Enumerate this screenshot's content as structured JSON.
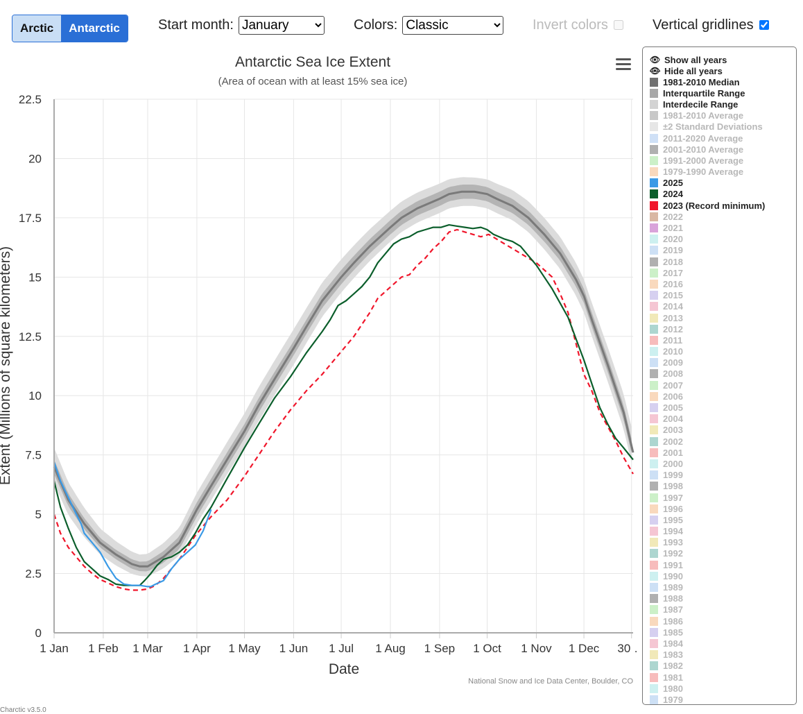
{
  "controls": {
    "arctic_label": "Arctic",
    "antarctic_label": "Antarctic",
    "start_month_label": "Start month:",
    "start_month_value": "January",
    "colors_label": "Colors:",
    "colors_value": "Classic",
    "invert_label": "Invert colors",
    "gridlines_label": "Vertical gridlines"
  },
  "credit": "National Snow and Ice Data Center, Boulder, CO",
  "version": "Charctic v3.5.0",
  "legend": {
    "show_all": "Show all years",
    "hide_all": "Hide all years",
    "items": [
      {
        "label": "1981-2010 Median",
        "color": "#707070",
        "active": true
      },
      {
        "label": "Interquartile Range",
        "color": "#a8a8a8",
        "active": true
      },
      {
        "label": "Interdecile Range",
        "color": "#d3d3d3",
        "active": true
      },
      {
        "label": "1981-2010 Average",
        "color": "#c8c8c8",
        "active": false
      },
      {
        "label": "±2 Standard Deviations",
        "color": "#e6e6e6",
        "active": false
      },
      {
        "label": "2011-2020 Average",
        "color": "#cfe0f6",
        "active": false
      },
      {
        "label": "2001-2010 Average",
        "color": "#b0b0b0",
        "active": false
      },
      {
        "label": "1991-2000 Average",
        "color": "#ccf0c8",
        "active": false
      },
      {
        "label": "1979-1990 Average",
        "color": "#f9d9bd",
        "active": false
      },
      {
        "label": "2025",
        "color": "#3a9ae6",
        "active": true
      },
      {
        "label": "2024",
        "color": "#0b5e2b",
        "active": true
      },
      {
        "label": "2023 (Record minimum)",
        "color": "#f0162b",
        "active": true
      },
      {
        "label": "2022",
        "color": "#d9b7a3",
        "active": false
      },
      {
        "label": "2021",
        "color": "#d9a3da",
        "active": false
      },
      {
        "label": "2020",
        "color": "#cdf0f0",
        "active": false
      },
      {
        "label": "2019",
        "color": "#cde0f5",
        "active": false
      },
      {
        "label": "2018",
        "color": "#b0b0b0",
        "active": false
      },
      {
        "label": "2017",
        "color": "#ccf0c8",
        "active": false
      },
      {
        "label": "2016",
        "color": "#f9d9bd",
        "active": false
      },
      {
        "label": "2015",
        "color": "#d6d0f0",
        "active": false
      },
      {
        "label": "2014",
        "color": "#f5c6d3",
        "active": false
      },
      {
        "label": "2013",
        "color": "#f1e9b8",
        "active": false
      },
      {
        "label": "2012",
        "color": "#add6d0",
        "active": false
      },
      {
        "label": "2011",
        "color": "#f7bcbc",
        "active": false
      },
      {
        "label": "2010",
        "color": "#cdf0f0",
        "active": false
      },
      {
        "label": "2009",
        "color": "#cde0f5",
        "active": false
      },
      {
        "label": "2008",
        "color": "#b0b0b0",
        "active": false
      },
      {
        "label": "2007",
        "color": "#ccf0c8",
        "active": false
      },
      {
        "label": "2006",
        "color": "#f9d9bd",
        "active": false
      },
      {
        "label": "2005",
        "color": "#d6d0f0",
        "active": false
      },
      {
        "label": "2004",
        "color": "#f5c6d3",
        "active": false
      },
      {
        "label": "2003",
        "color": "#f1e9b8",
        "active": false
      },
      {
        "label": "2002",
        "color": "#add6d0",
        "active": false
      },
      {
        "label": "2001",
        "color": "#f7bcbc",
        "active": false
      },
      {
        "label": "2000",
        "color": "#cdf0f0",
        "active": false
      },
      {
        "label": "1999",
        "color": "#cde0f5",
        "active": false
      },
      {
        "label": "1998",
        "color": "#b0b0b0",
        "active": false
      },
      {
        "label": "1997",
        "color": "#ccf0c8",
        "active": false
      },
      {
        "label": "1996",
        "color": "#f9d9bd",
        "active": false
      },
      {
        "label": "1995",
        "color": "#d6d0f0",
        "active": false
      },
      {
        "label": "1994",
        "color": "#f5c6d3",
        "active": false
      },
      {
        "label": "1993",
        "color": "#f1e9b8",
        "active": false
      },
      {
        "label": "1992",
        "color": "#add6d0",
        "active": false
      },
      {
        "label": "1991",
        "color": "#f7bcbc",
        "active": false
      },
      {
        "label": "1990",
        "color": "#cdf0f0",
        "active": false
      },
      {
        "label": "1989",
        "color": "#cde0f5",
        "active": false
      },
      {
        "label": "1988",
        "color": "#b0b0b0",
        "active": false
      },
      {
        "label": "1987",
        "color": "#ccf0c8",
        "active": false
      },
      {
        "label": "1986",
        "color": "#f9d9bd",
        "active": false
      },
      {
        "label": "1985",
        "color": "#d6d0f0",
        "active": false
      },
      {
        "label": "1984",
        "color": "#f5c6d3",
        "active": false
      },
      {
        "label": "1983",
        "color": "#f1e9b8",
        "active": false
      },
      {
        "label": "1982",
        "color": "#add6d0",
        "active": false
      },
      {
        "label": "1981",
        "color": "#f7bcbc",
        "active": false
      },
      {
        "label": "1980",
        "color": "#cdf0f0",
        "active": false
      },
      {
        "label": "1979",
        "color": "#cde0f5",
        "active": false
      }
    ]
  },
  "chart_data": {
    "type": "line",
    "title": "Antarctic Sea Ice Extent",
    "subtitle": "(Area of ocean with at least 15% sea ice)",
    "xlabel": "Date",
    "ylabel": "Extent (Millions of square kilometers)",
    "ylim": [
      0,
      22.5
    ],
    "xlim": [
      1,
      366
    ],
    "yticks": [
      0,
      2.5,
      5,
      7.5,
      10,
      12.5,
      15,
      17.5,
      20,
      22.5
    ],
    "xticks": [
      {
        "day": 1,
        "label": "1 Jan"
      },
      {
        "day": 32,
        "label": "1 Feb"
      },
      {
        "day": 60,
        "label": "1 Mar"
      },
      {
        "day": 91,
        "label": "1 Apr"
      },
      {
        "day": 121,
        "label": "1 May"
      },
      {
        "day": 152,
        "label": "1 Jun"
      },
      {
        "day": 182,
        "label": "1 Jul"
      },
      {
        "day": 213,
        "label": "1 Aug"
      },
      {
        "day": 244,
        "label": "1 Sep"
      },
      {
        "day": 274,
        "label": "1 Oct"
      },
      {
        "day": 305,
        "label": "1 Nov"
      },
      {
        "day": 335,
        "label": "1 Dec"
      },
      {
        "day": 365,
        "label": "30 …"
      }
    ],
    "median": {
      "name": "1981-2010 Median",
      "x": [
        1,
        10,
        20,
        30,
        40,
        50,
        55,
        60,
        70,
        80,
        91,
        100,
        110,
        121,
        130,
        140,
        152,
        160,
        170,
        182,
        190,
        200,
        213,
        220,
        230,
        244,
        250,
        258,
        266,
        274,
        280,
        290,
        300,
        310,
        320,
        330,
        335,
        340,
        350,
        360,
        366
      ],
      "y": [
        7.0,
        5.6,
        4.6,
        3.8,
        3.3,
        2.9,
        2.8,
        2.8,
        3.2,
        3.8,
        5.2,
        6.2,
        7.3,
        8.5,
        9.6,
        10.7,
        12.0,
        12.9,
        14.0,
        15.0,
        15.6,
        16.3,
        17.1,
        17.5,
        17.9,
        18.3,
        18.5,
        18.6,
        18.6,
        18.5,
        18.3,
        18.0,
        17.5,
        16.8,
        16.0,
        14.9,
        14.2,
        13.2,
        11.3,
        9.3,
        7.6
      ]
    },
    "interquartile": {
      "name": "Interquartile Range",
      "x": [
        1,
        30,
        55,
        91,
        152,
        213,
        266,
        300,
        335,
        366
      ],
      "lower": [
        6.7,
        3.6,
        2.6,
        4.9,
        11.7,
        16.8,
        18.3,
        17.2,
        13.9,
        7.3
      ],
      "upper": [
        7.3,
        4.0,
        3.0,
        5.5,
        12.3,
        17.4,
        18.9,
        17.8,
        14.5,
        7.9
      ]
    },
    "interdecile": {
      "name": "Interdecile Range",
      "x": [
        1,
        30,
        55,
        91,
        152,
        213,
        266,
        300,
        335,
        366
      ],
      "lower": [
        6.3,
        3.3,
        2.4,
        4.6,
        11.3,
        16.5,
        18.0,
        16.9,
        13.5,
        6.9
      ],
      "upper": [
        7.8,
        4.4,
        3.3,
        5.9,
        12.8,
        17.8,
        19.2,
        18.2,
        14.9,
        8.4
      ]
    },
    "series": [
      {
        "name": "2025",
        "color": "#3a9ae6",
        "x": [
          1,
          5,
          10,
          15,
          18,
          20,
          25,
          30,
          35,
          40,
          45,
          50,
          55,
          60,
          62,
          65,
          70,
          75,
          80,
          85,
          90,
          95,
          100
        ],
        "y": [
          7.2,
          6.4,
          5.7,
          5.0,
          4.6,
          4.2,
          3.8,
          3.4,
          2.8,
          2.3,
          2.05,
          2.0,
          2.0,
          1.95,
          1.95,
          2.05,
          2.2,
          2.7,
          3.1,
          3.4,
          3.7,
          4.3,
          5.2
        ]
      },
      {
        "name": "2024",
        "color": "#0b5e2b",
        "x": [
          1,
          5,
          10,
          15,
          20,
          25,
          30,
          35,
          40,
          45,
          50,
          55,
          58,
          62,
          66,
          70,
          75,
          80,
          85,
          90,
          95,
          100,
          110,
          121,
          130,
          140,
          150,
          160,
          170,
          175,
          180,
          185,
          190,
          195,
          200,
          205,
          210,
          215,
          220,
          225,
          230,
          235,
          240,
          245,
          250,
          255,
          260,
          265,
          270,
          274,
          278,
          285,
          290,
          295,
          300,
          305,
          310,
          315,
          320,
          325,
          330,
          335,
          340,
          345,
          350,
          355,
          360,
          366
        ],
        "y": [
          6.4,
          5.3,
          4.4,
          3.6,
          3.0,
          2.7,
          2.4,
          2.25,
          2.05,
          2.0,
          2.0,
          2.0,
          2.2,
          2.5,
          2.85,
          3.1,
          3.2,
          3.4,
          3.7,
          4.2,
          4.8,
          5.3,
          6.5,
          7.8,
          8.8,
          9.9,
          10.8,
          11.8,
          12.7,
          13.2,
          13.8,
          14.0,
          14.3,
          14.6,
          15.0,
          15.6,
          16.0,
          16.4,
          16.6,
          16.7,
          16.9,
          17.0,
          17.1,
          17.1,
          17.2,
          17.15,
          17.1,
          17.05,
          17.1,
          17.0,
          16.8,
          16.6,
          16.5,
          16.3,
          15.9,
          15.5,
          15.0,
          14.5,
          13.9,
          13.3,
          12.4,
          11.5,
          10.5,
          9.5,
          8.8,
          8.2,
          7.8,
          7.3
        ]
      },
      {
        "name": "2023 (Record minimum)",
        "color": "#f0162b",
        "dashed": true,
        "x": [
          1,
          5,
          10,
          15,
          20,
          25,
          30,
          35,
          40,
          45,
          50,
          55,
          60,
          65,
          70,
          75,
          80,
          85,
          90,
          95,
          100,
          110,
          121,
          130,
          140,
          150,
          160,
          170,
          180,
          190,
          200,
          205,
          210,
          215,
          220,
          225,
          230,
          235,
          240,
          245,
          250,
          255,
          260,
          265,
          270,
          275,
          280,
          285,
          290,
          295,
          300,
          305,
          310,
          315,
          320,
          325,
          330,
          335,
          340,
          345,
          350,
          355,
          360,
          366
        ],
        "y": [
          5.0,
          4.2,
          3.6,
          3.2,
          2.8,
          2.5,
          2.25,
          2.1,
          1.95,
          1.85,
          1.8,
          1.8,
          1.85,
          2.0,
          2.3,
          2.7,
          3.1,
          3.6,
          4.1,
          4.5,
          4.9,
          5.6,
          6.6,
          7.5,
          8.5,
          9.4,
          10.2,
          10.9,
          11.7,
          12.5,
          13.5,
          14.1,
          14.4,
          14.7,
          15.0,
          15.1,
          15.5,
          15.8,
          16.2,
          16.5,
          16.9,
          17.0,
          16.9,
          16.8,
          16.7,
          16.8,
          16.6,
          16.4,
          16.2,
          16.0,
          15.8,
          15.6,
          15.3,
          15.0,
          14.3,
          13.5,
          12.2,
          10.9,
          10.2,
          9.3,
          8.7,
          8.1,
          7.4,
          6.7
        ]
      }
    ]
  }
}
